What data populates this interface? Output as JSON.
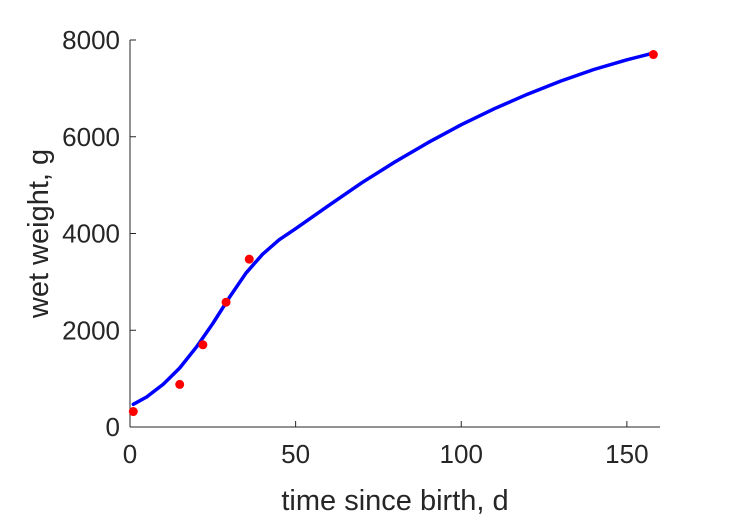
{
  "chart_data": {
    "type": "scatter",
    "title": "",
    "xlabel": "time since birth, d",
    "ylabel": "wet weight, g",
    "xlim": [
      0,
      160
    ],
    "ylim": [
      0,
      8000
    ],
    "xticks": [
      "0",
      "50",
      "100",
      "150"
    ],
    "yticks": [
      "0",
      "2000",
      "4000",
      "6000",
      "8000"
    ],
    "grid": false,
    "legend": "none",
    "series": [
      {
        "kind": "points",
        "color": "#ff0000",
        "x": [
          1,
          15,
          22,
          29,
          36,
          158
        ],
        "y": [
          320,
          880,
          1700,
          2580,
          3470,
          7700
        ]
      },
      {
        "kind": "line",
        "color": "#0000ff",
        "x": [
          1,
          5,
          10,
          15,
          20,
          25,
          30,
          35,
          40,
          45,
          50,
          60,
          70,
          80,
          90,
          100,
          110,
          120,
          130,
          140,
          150,
          158
        ],
        "y": [
          470,
          620,
          880,
          1220,
          1650,
          2140,
          2680,
          3180,
          3570,
          3870,
          4100,
          4580,
          5050,
          5480,
          5880,
          6250,
          6580,
          6880,
          7150,
          7390,
          7590,
          7730
        ]
      }
    ]
  }
}
